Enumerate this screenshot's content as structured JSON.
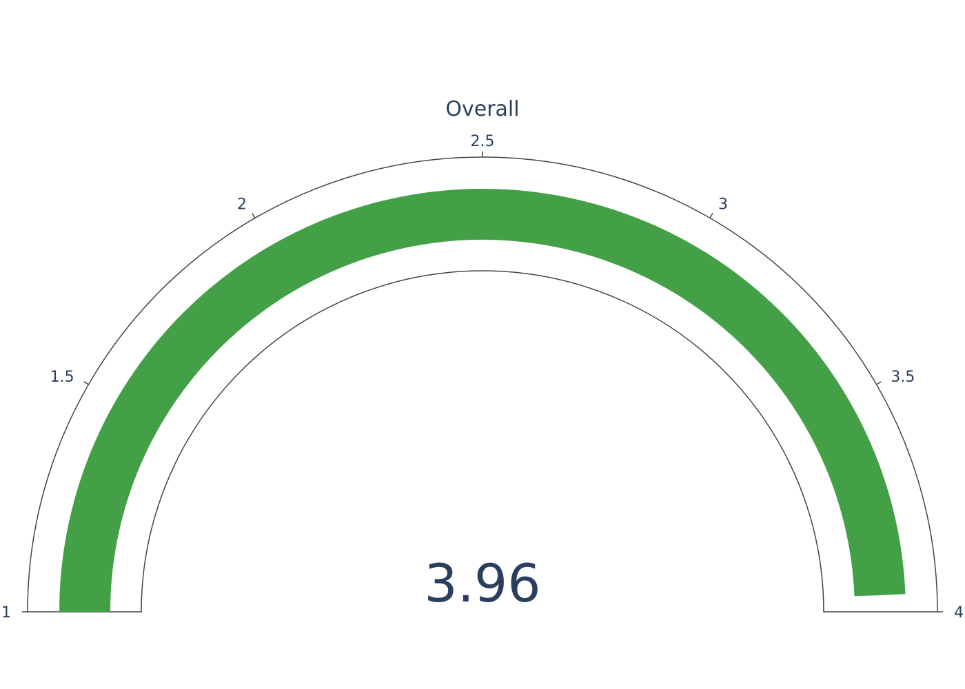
{
  "chart_data": {
    "type": "gauge",
    "title": "Overall",
    "value": 3.96,
    "value_label": "3.96",
    "range": [
      1,
      4
    ],
    "ticks": [
      {
        "value": 1,
        "label": "1"
      },
      {
        "value": 1.5,
        "label": "1.5"
      },
      {
        "value": 2,
        "label": "2"
      },
      {
        "value": 2.5,
        "label": "2.5"
      },
      {
        "value": 3,
        "label": "3"
      },
      {
        "value": 3.5,
        "label": "3.5"
      },
      {
        "value": 4,
        "label": "4"
      }
    ],
    "bar_color": "#43a047",
    "outline_color": "#444444",
    "text_color": "#2a3f5f"
  }
}
